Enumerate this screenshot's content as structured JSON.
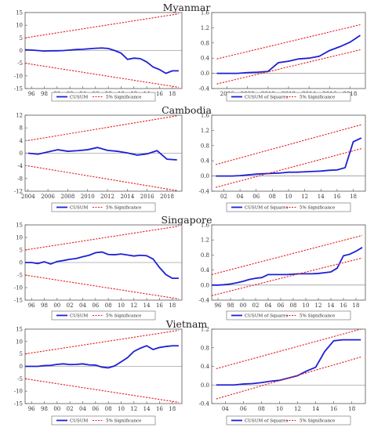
{
  "chart_data": [
    {
      "type": "line",
      "country": "Myanmar",
      "panel": "CUSUM",
      "x_ticks": [
        "96",
        "98",
        "00",
        "02",
        "04",
        "06",
        "08",
        "10",
        "12",
        "14",
        "16",
        "18"
      ],
      "x_range": [
        1995,
        2019.5
      ],
      "y_ticks": [
        "15",
        "10",
        "5",
        "0",
        "-5",
        "-10",
        "-15"
      ],
      "ylim": [
        -15,
        15
      ],
      "series": [
        {
          "name": "CUSUM",
          "color": "#1f1fd6",
          "x": [
            1995,
            1996,
            1997,
            1998,
            1999,
            2000,
            2001,
            2002,
            2003,
            2004,
            2005,
            2006,
            2007,
            2008,
            2009,
            2010,
            2011,
            2012,
            2013,
            2014,
            2015,
            2016,
            2017,
            2018,
            2019
          ],
          "y": [
            0.3,
            0.2,
            0,
            -0.2,
            -0.1,
            -0.1,
            0,
            0.2,
            0.4,
            0.5,
            0.7,
            0.9,
            1.0,
            0.8,
            0,
            -1.0,
            -3.5,
            -3,
            -3.2,
            -4.5,
            -6.5,
            -7.5,
            -9,
            -8,
            -8
          ]
        },
        {
          "name": "5% Significance",
          "color": "#e41a1c",
          "dashed": true,
          "x": [
            1995,
            2019
          ],
          "y": [
            5,
            14.5
          ]
        },
        {
          "name": "5% Significance lower",
          "color": "#e41a1c",
          "dashed": true,
          "x": [
            1995,
            2019
          ],
          "y": [
            -5,
            -14.5
          ]
        }
      ],
      "legend": [
        "CUSUM",
        "5% Significance"
      ]
    },
    {
      "type": "line",
      "country": "Myanmar",
      "panel": "CUSUM of Squares",
      "x_ticks": [
        "2006",
        "2008",
        "2010",
        "2012",
        "2014",
        "2016",
        "2018"
      ],
      "x_range": [
        2004.5,
        2019.5
      ],
      "y_ticks": [
        "1.6",
        "1.2",
        "0.8",
        "0.4",
        "0.0",
        "-0.4"
      ],
      "ylim": [
        -0.4,
        1.6
      ],
      "series": [
        {
          "name": "CUSUM of Squares",
          "color": "#1f1fd6",
          "x": [
            2005,
            2006,
            2007,
            2008,
            2009,
            2010,
            2011,
            2012,
            2013,
            2014,
            2015,
            2016,
            2017,
            2018,
            2019
          ],
          "y": [
            0,
            0,
            0,
            0.02,
            0.03,
            0.05,
            0.28,
            0.32,
            0.38,
            0.4,
            0.45,
            0.6,
            0.7,
            0.82,
            1.0
          ]
        },
        {
          "name": "5% Significance",
          "color": "#e41a1c",
          "dashed": true,
          "x": [
            2005,
            2019
          ],
          "y": [
            0.38,
            1.28
          ]
        },
        {
          "name": "5% Significance lower",
          "color": "#e41a1c",
          "dashed": true,
          "x": [
            2005,
            2019
          ],
          "y": [
            -0.28,
            0.62
          ]
        }
      ],
      "legend": [
        "CUSUM of Squares",
        "5% Significance"
      ]
    },
    {
      "type": "line",
      "country": "Cambodia",
      "panel": "CUSUM",
      "x_ticks": [
        "2004",
        "2006",
        "2008",
        "2010",
        "2012",
        "2014",
        "2016",
        "2018"
      ],
      "x_range": [
        2003.7,
        2019.5
      ],
      "y_ticks": [
        "12",
        "8",
        "4",
        "0",
        "-4",
        "-8",
        "-12"
      ],
      "ylim": [
        -12,
        12
      ],
      "series": [
        {
          "name": "CUSUM",
          "color": "#1f1fd6",
          "x": [
            2004,
            2005,
            2006,
            2007,
            2008,
            2009,
            2010,
            2011,
            2012,
            2013,
            2014,
            2015,
            2016,
            2017,
            2018,
            2019
          ],
          "y": [
            0,
            -0.3,
            0.4,
            1.1,
            0.6,
            0.8,
            1.1,
            1.8,
            0.9,
            0.6,
            0.1,
            -0.6,
            -0.2,
            0.8,
            -1.9,
            -2.1
          ]
        },
        {
          "name": "5% Significance",
          "color": "#e41a1c",
          "dashed": true,
          "x": [
            2004,
            2019
          ],
          "y": [
            4,
            11.8
          ]
        },
        {
          "name": "5% Significance lower",
          "color": "#e41a1c",
          "dashed": true,
          "x": [
            2004,
            2019
          ],
          "y": [
            -4,
            -11.8
          ]
        }
      ],
      "legend": [
        "CUSUM",
        "5% Significance"
      ]
    },
    {
      "type": "line",
      "country": "Cambodia",
      "panel": "CUSUM of Squares",
      "x_ticks": [
        "02",
        "04",
        "06",
        "08",
        "10",
        "12",
        "14",
        "16",
        "18"
      ],
      "x_range": [
        2000.5,
        2019.5
      ],
      "y_ticks": [
        "1.6",
        "1.2",
        "0.8",
        "0.4",
        "0.0",
        "-0.4"
      ],
      "ylim": [
        -0.4,
        1.6
      ],
      "series": [
        {
          "name": "CUSUM of Squares",
          "color": "#1f1fd6",
          "x": [
            2001,
            2002,
            2003,
            2004,
            2005,
            2006,
            2007,
            2008,
            2009,
            2010,
            2011,
            2012,
            2013,
            2014,
            2015,
            2016,
            2017,
            2018,
            2019
          ],
          "y": [
            0,
            0,
            0,
            0.01,
            0.03,
            0.05,
            0.06,
            0.07,
            0.08,
            0.1,
            0.1,
            0.11,
            0.12,
            0.13,
            0.15,
            0.16,
            0.22,
            0.9,
            1.0
          ]
        },
        {
          "name": "5% Significance",
          "color": "#e41a1c",
          "dashed": true,
          "x": [
            2001,
            2019
          ],
          "y": [
            0.3,
            1.35
          ]
        },
        {
          "name": "5% Significance lower",
          "color": "#e41a1c",
          "dashed": true,
          "x": [
            2001,
            2019
          ],
          "y": [
            -0.3,
            0.72
          ]
        }
      ],
      "legend": [
        "CUSUM of Squares",
        "5% Significance"
      ]
    },
    {
      "type": "line",
      "country": "Singapore",
      "panel": "CUSUM",
      "x_ticks": [
        "96",
        "98",
        "00",
        "02",
        "04",
        "06",
        "08",
        "10",
        "12",
        "14",
        "16",
        "18"
      ],
      "x_range": [
        1995,
        2019.5
      ],
      "y_ticks": [
        "15",
        "10",
        "5",
        "0",
        "-5",
        "-10",
        "-15"
      ],
      "ylim": [
        -15,
        15
      ],
      "series": [
        {
          "name": "CUSUM",
          "color": "#1f1fd6",
          "x": [
            1995,
            1996,
            1997,
            1998,
            1999,
            2000,
            2001,
            2002,
            2003,
            2004,
            2005,
            2006,
            2007,
            2008,
            2009,
            2010,
            2011,
            2012,
            2013,
            2014,
            2015,
            2016,
            2017,
            2018,
            2019
          ],
          "y": [
            0,
            0,
            -0.4,
            0.3,
            -0.6,
            0.4,
            0.8,
            1.3,
            1.6,
            2.3,
            2.9,
            3.9,
            4.2,
            3.2,
            3.1,
            3.4,
            3.0,
            2.6,
            2.9,
            2.7,
            1.4,
            -2.0,
            -4.8,
            -6.3,
            -6.3
          ]
        },
        {
          "name": "5% Significance",
          "color": "#e41a1c",
          "dashed": true,
          "x": [
            1995,
            2019
          ],
          "y": [
            5,
            14.5
          ]
        },
        {
          "name": "5% Significance lower",
          "color": "#e41a1c",
          "dashed": true,
          "x": [
            1995,
            2019
          ],
          "y": [
            -5,
            -14.5
          ]
        }
      ],
      "legend": [
        "CUSUM",
        "5% Significance"
      ]
    },
    {
      "type": "line",
      "country": "Singapore",
      "panel": "CUSUM of Squares",
      "x_ticks": [
        "96",
        "98",
        "00",
        "02",
        "04",
        "06",
        "08",
        "10",
        "12",
        "14",
        "16",
        "18"
      ],
      "x_range": [
        1995,
        2019.5
      ],
      "y_ticks": [
        "1.6",
        "1.2",
        "0.8",
        "0.4",
        "0.0",
        "-0.4"
      ],
      "ylim": [
        -0.4,
        1.6
      ],
      "series": [
        {
          "name": "CUSUM of Squares",
          "color": "#1f1fd6",
          "x": [
            1995,
            1996,
            1997,
            1998,
            1999,
            2000,
            2001,
            2002,
            2003,
            2004,
            2005,
            2006,
            2007,
            2008,
            2009,
            2010,
            2011,
            2012,
            2013,
            2014,
            2015,
            2016,
            2017,
            2018,
            2019
          ],
          "y": [
            0,
            0,
            0.01,
            0.03,
            0.06,
            0.1,
            0.15,
            0.18,
            0.2,
            0.28,
            0.28,
            0.28,
            0.28,
            0.29,
            0.3,
            0.3,
            0.3,
            0.31,
            0.33,
            0.35,
            0.45,
            0.78,
            0.82,
            0.9,
            1.0
          ]
        },
        {
          "name": "5% Significance",
          "color": "#e41a1c",
          "dashed": true,
          "x": [
            1995,
            2019
          ],
          "y": [
            0.28,
            1.32
          ]
        },
        {
          "name": "5% Significance lower",
          "color": "#e41a1c",
          "dashed": true,
          "x": [
            1995,
            2019
          ],
          "y": [
            -0.28,
            0.72
          ]
        }
      ],
      "legend": [
        "CUSUM of Squares",
        "5% Significance"
      ]
    },
    {
      "type": "line",
      "country": "Vietnam",
      "panel": "CUSUM",
      "x_ticks": [
        "96",
        "98",
        "00",
        "02",
        "04",
        "06",
        "08",
        "10",
        "12",
        "14",
        "16",
        "18"
      ],
      "x_range": [
        1995,
        2019.5
      ],
      "y_ticks": [
        "15",
        "10",
        "5",
        "0",
        "-5",
        "-10",
        "-15"
      ],
      "ylim": [
        -15,
        15
      ],
      "series": [
        {
          "name": "CUSUM",
          "color": "#1f1fd6",
          "x": [
            1995,
            1996,
            1997,
            1998,
            1999,
            2000,
            2001,
            2002,
            2003,
            2004,
            2005,
            2006,
            2007,
            2008,
            2009,
            2010,
            2011,
            2012,
            2013,
            2014,
            2015,
            2016,
            2017,
            2018,
            2019
          ],
          "y": [
            0,
            0,
            0,
            0.3,
            0.4,
            0.8,
            1.0,
            0.7,
            0.8,
            1.0,
            0.6,
            0.5,
            -0.3,
            -0.6,
            0.2,
            1.8,
            3.5,
            6.0,
            7.3,
            8.3,
            6.8,
            7.6,
            8.0,
            8.3,
            8.3
          ]
        },
        {
          "name": "5% Significance",
          "color": "#e41a1c",
          "dashed": true,
          "x": [
            1995,
            2019
          ],
          "y": [
            5,
            14.5
          ]
        },
        {
          "name": "5% Significance lower",
          "color": "#e41a1c",
          "dashed": true,
          "x": [
            1995,
            2019
          ],
          "y": [
            -5,
            -14.5
          ]
        }
      ],
      "legend": [
        "CUSUM",
        "5% Significance"
      ]
    },
    {
      "type": "line",
      "country": "Vietnam",
      "panel": "CUSUM of Squares",
      "x_ticks": [
        "04",
        "06",
        "08",
        "10",
        "12",
        "14",
        "16",
        "18"
      ],
      "x_range": [
        2002.5,
        2019.5
      ],
      "y_ticks": [
        "1.2",
        "0.8",
        "0.4",
        "0.0",
        "-0.4"
      ],
      "ylim": [
        -0.4,
        1.2
      ],
      "series": [
        {
          "name": "CUSUM of Squares",
          "color": "#1f1fd6",
          "x": [
            2003,
            2004,
            2005,
            2006,
            2007,
            2008,
            2009,
            2010,
            2011,
            2012,
            2013,
            2014,
            2015,
            2016,
            2017,
            2018,
            2019
          ],
          "y": [
            0,
            0,
            0,
            0.02,
            0.03,
            0.05,
            0.08,
            0.1,
            0.15,
            0.2,
            0.3,
            0.38,
            0.72,
            0.95,
            0.97,
            0.97,
            0.97
          ]
        },
        {
          "name": "5% Significance",
          "color": "#e41a1c",
          "dashed": true,
          "x": [
            2003,
            2019
          ],
          "y": [
            0.35,
            1.2
          ]
        },
        {
          "name": "5% Significance lower",
          "color": "#e41a1c",
          "dashed": true,
          "x": [
            2003,
            2019
          ],
          "y": [
            -0.3,
            0.6
          ]
        }
      ],
      "legend": [
        "CUSUM of Squares",
        "5% Significance"
      ]
    }
  ]
}
